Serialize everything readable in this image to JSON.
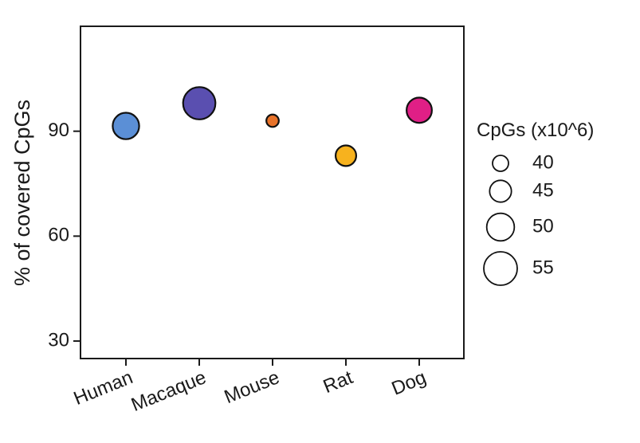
{
  "chart_data": {
    "type": "scatter",
    "ylabel": "% of covered CpGs",
    "ylim": [
      25,
      120
    ],
    "yticks": [
      30,
      60,
      90
    ],
    "categories": [
      "Human",
      "Macaque",
      "Mouse",
      "Rat",
      "Dog"
    ],
    "points": [
      {
        "category": "Human",
        "y": 91.5,
        "size": 49,
        "color": "#5b8fd6"
      },
      {
        "category": "Macaque",
        "y": 98,
        "size": 54,
        "color": "#5a4fb0"
      },
      {
        "category": "Mouse",
        "y": 93,
        "size": 37,
        "color": "#e8732a"
      },
      {
        "category": "Rat",
        "y": 83,
        "size": 44,
        "color": "#f7b21e"
      },
      {
        "category": "Dog",
        "y": 96,
        "size": 48,
        "color": "#e01f86"
      }
    ],
    "size_legend": {
      "title": "CpGs (x10^6)",
      "entries": [
        {
          "label": "40",
          "value": 40
        },
        {
          "label": "45",
          "value": 45
        },
        {
          "label": "50",
          "value": 50
        },
        {
          "label": "55",
          "value": 55
        }
      ]
    },
    "grid": false,
    "legend_position": "right"
  }
}
